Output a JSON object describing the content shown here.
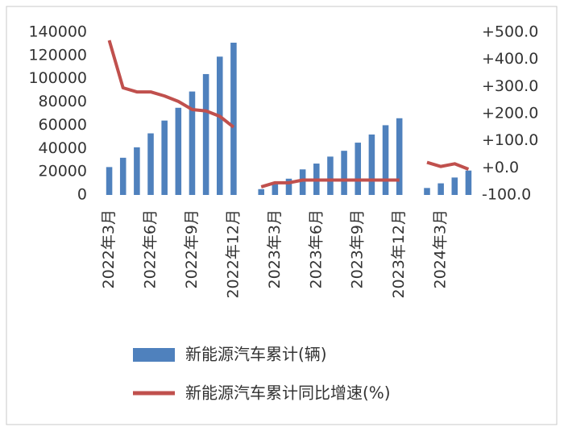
{
  "chart_data": {
    "type": "bar-line",
    "categories": [
      "2022年3月",
      null,
      null,
      "2022年6月",
      null,
      null,
      "2022年9月",
      null,
      null,
      "2022年12月",
      null,
      null,
      "2023年3月",
      null,
      null,
      "2023年6月",
      null,
      null,
      "2023年9月",
      null,
      null,
      "2023年12月",
      null,
      null,
      "2024年3月",
      null,
      null
    ],
    "series": [
      {
        "name": "新能源汽车累计(辆)",
        "type": "bar",
        "color": "#4f81bd",
        "values": [
          24000,
          32000,
          41000,
          53000,
          64000,
          75000,
          89000,
          104000,
          119000,
          131000,
          null,
          5000,
          10000,
          14000,
          22000,
          27000,
          33000,
          38000,
          45000,
          52000,
          60000,
          66000,
          null,
          6000,
          10000,
          15000,
          21000
        ]
      },
      {
        "name": "新能源汽车累计同比增速(%)",
        "type": "line",
        "axis": "y2",
        "color": "#c0504d",
        "values": [
          470,
          295,
          280,
          280,
          265,
          245,
          215,
          210,
          190,
          150,
          null,
          -70,
          -55,
          -55,
          -45,
          -45,
          -45,
          -45,
          -45,
          -45,
          -45,
          -45,
          null,
          20,
          5,
          15,
          -5
        ]
      }
    ],
    "ylim": [
      0,
      140000
    ],
    "yticks": [
      0,
      20000,
      40000,
      60000,
      80000,
      100000,
      120000,
      140000
    ],
    "y2lim": [
      -100,
      500
    ],
    "y2ticks": [
      {
        "value": -100,
        "label": "-100.0"
      },
      {
        "value": 0,
        "label": "+0.0"
      },
      {
        "value": 100,
        "label": "+100.0"
      },
      {
        "value": 200,
        "label": "+200.0"
      },
      {
        "value": 300,
        "label": "+300.0"
      },
      {
        "value": 400,
        "label": "+400.0"
      },
      {
        "value": 500,
        "label": "+500.0"
      }
    ]
  }
}
